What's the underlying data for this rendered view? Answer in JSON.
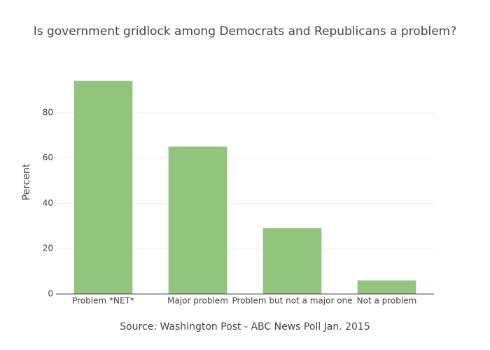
{
  "chart_data": {
    "type": "bar",
    "title": "Is government gridlock among Democrats and Republicans a problem?",
    "x_label": "Source: Washington Post - ABC News Poll Jan. 2015",
    "y_label": "Percent",
    "categories": [
      "Problem *NET*",
      "Major problem",
      "Problem but not a major one",
      "Not a problem"
    ],
    "values": [
      94,
      65,
      29,
      6
    ],
    "color": "#93c47d",
    "ylim": [
      0,
      98.8
    ],
    "yticks": [
      0,
      20,
      40,
      60,
      80
    ],
    "grid": true
  }
}
